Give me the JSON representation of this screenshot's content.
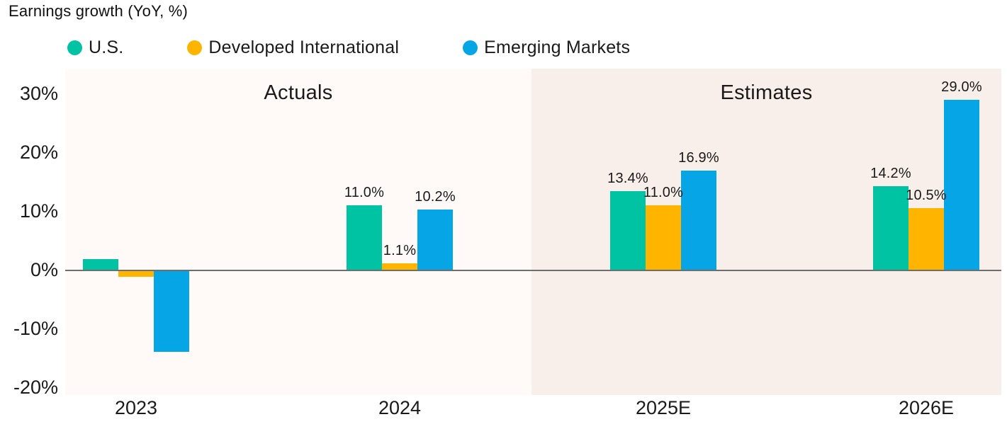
{
  "title": "Earnings growth (YoY, %)",
  "legend": [
    {
      "label": "U.S.",
      "color": "#00C3A4"
    },
    {
      "label": "Developed International",
      "color": "#FFB400"
    },
    {
      "label": "Emerging Markets",
      "color": "#06A6E6"
    }
  ],
  "sections": [
    {
      "label": "Actuals",
      "bg": "#FFFAF8"
    },
    {
      "label": "Estimates",
      "bg": "#F8EEEA"
    }
  ],
  "colors": {
    "axis_line": "#6E6E6E",
    "text": "#1A1A1A"
  },
  "chart_data": {
    "type": "bar",
    "title": "Earnings growth (YoY, %)",
    "categories": [
      "2023",
      "2024",
      "2025E",
      "2026E"
    ],
    "series": [
      {
        "name": "U.S.",
        "color": "#00C3A4",
        "values": [
          1.8,
          11.0,
          13.4,
          14.2
        ],
        "labels": [
          "",
          "11.0%",
          "13.4%",
          "14.2%"
        ]
      },
      {
        "name": "Developed International",
        "color": "#FFB400",
        "values": [
          -1.2,
          1.1,
          11.0,
          10.5
        ],
        "labels": [
          "",
          "1.1%",
          "11.0%",
          "10.5%"
        ]
      },
      {
        "name": "Emerging Markets",
        "color": "#06A6E6",
        "values": [
          -14.0,
          10.2,
          16.9,
          29.0
        ],
        "labels": [
          "",
          "10.2%",
          "16.9%",
          "29.0%"
        ]
      }
    ],
    "y_ticks": [
      "30%",
      "20%",
      "10%",
      "0%",
      "-10%",
      "-20%"
    ],
    "y_tick_values": [
      30,
      20,
      10,
      0,
      -10,
      -20
    ],
    "ylim": [
      -21.4,
      34.3
    ],
    "sections": [
      {
        "label": "Actuals",
        "categories": [
          "2023",
          "2024"
        ]
      },
      {
        "label": "Estimates",
        "categories": [
          "2025E",
          "2026E"
        ]
      }
    ],
    "grid": false,
    "legend_position": "top",
    "xlabel": "",
    "ylabel": "Earnings growth (YoY, %)"
  }
}
